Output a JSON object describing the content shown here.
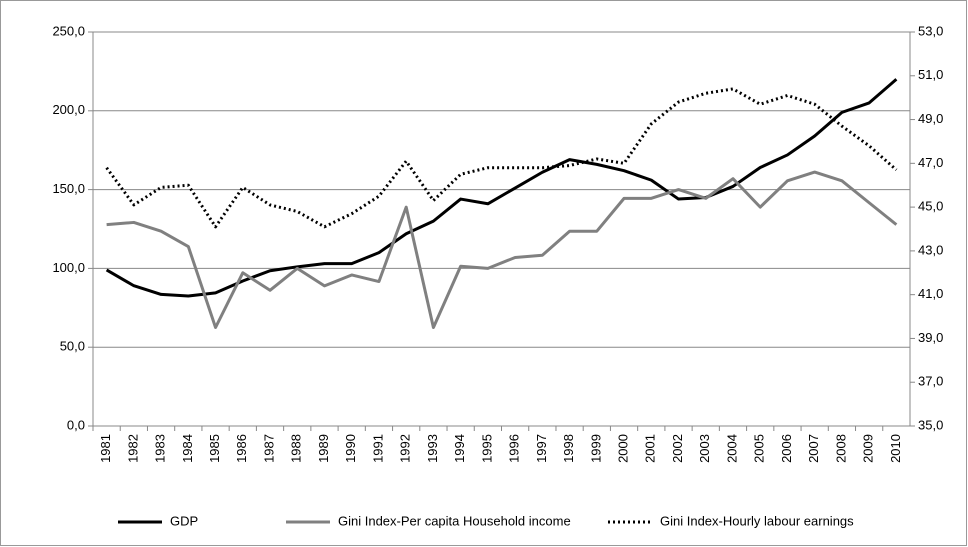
{
  "chart_data": {
    "type": "line",
    "categories": [
      "1981",
      "1982",
      "1983",
      "1984",
      "1985",
      "1986",
      "1987",
      "1988",
      "1989",
      "1990",
      "1991",
      "1992",
      "1993",
      "1994",
      "1995",
      "1996",
      "1997",
      "1998",
      "1999",
      "2000",
      "2001",
      "2002",
      "2003",
      "2004",
      "2005",
      "2006",
      "2007",
      "2008",
      "2009",
      "2010"
    ],
    "series": [
      {
        "name": "GDP",
        "color": "#000000",
        "line_style": "solid",
        "values": [
          99,
          89,
          83.5,
          82.5,
          84.5,
          92,
          98.5,
          101,
          103,
          103,
          110,
          122,
          130,
          144,
          141,
          151,
          161,
          169,
          166,
          162,
          156,
          144,
          145,
          152,
          164,
          172,
          184,
          199,
          205,
          220
        ]
      },
      {
        "name": "Gini Index-Per capita Household income",
        "color": "#808080",
        "line_style": "solid",
        "axis": "y2",
        "values": [
          44.2,
          44.3,
          43.9,
          43.2,
          39.5,
          42.0,
          41.2,
          42.2,
          41.4,
          41.9,
          41.6,
          45.0,
          39.5,
          42.3,
          42.2,
          42.7,
          42.8,
          43.9,
          43.9,
          45.4,
          45.4,
          45.8,
          45.4,
          46.3,
          45.0,
          46.2,
          46.6,
          46.2,
          45.2,
          44.2
        ]
      },
      {
        "name": "Gini Index-Hourly labour earnings",
        "color": "#000000",
        "line_style": "dotted",
        "axis": "y2",
        "values": [
          46.8,
          45.1,
          45.9,
          46.0,
          44.1,
          45.9,
          45.1,
          44.8,
          44.1,
          44.7,
          45.5,
          47.1,
          45.3,
          46.5,
          46.8,
          46.8,
          46.8,
          46.9,
          47.2,
          47.0,
          48.8,
          49.8,
          50.2,
          50.4,
          49.7,
          50.1,
          49.7,
          48.7,
          47.8,
          46.7
        ]
      }
    ],
    "ylim": [
      0,
      250
    ],
    "yticks": [
      {
        "value": 0,
        "label": "0,0"
      },
      {
        "value": 50,
        "label": "50,0"
      },
      {
        "value": 100,
        "label": "100,0"
      },
      {
        "value": 150,
        "label": "150,0"
      },
      {
        "value": 200,
        "label": "200,0"
      },
      {
        "value": 250,
        "label": "250,0"
      }
    ],
    "y2lim": [
      35,
      53
    ],
    "y2ticks": [
      {
        "value": 35,
        "label": "35,0"
      },
      {
        "value": 37,
        "label": "37,0"
      },
      {
        "value": 39,
        "label": "39,0"
      },
      {
        "value": 41,
        "label": "41,0"
      },
      {
        "value": 43,
        "label": "43,0"
      },
      {
        "value": 45,
        "label": "45,0"
      },
      {
        "value": 47,
        "label": "47,0"
      },
      {
        "value": 49,
        "label": "49,0"
      },
      {
        "value": 51,
        "label": "51,0"
      },
      {
        "value": 53,
        "label": "53,0"
      }
    ],
    "grid": true,
    "legend": "bottom"
  }
}
